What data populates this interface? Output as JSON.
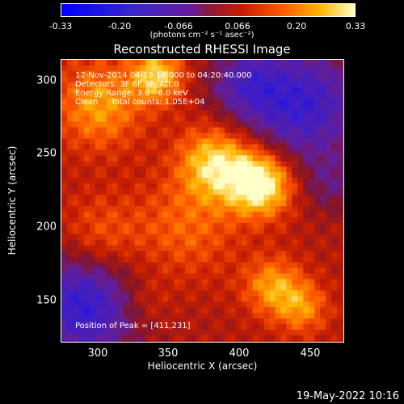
{
  "colorbar": {
    "ticks": [
      "-0.33",
      "-0.20",
      "-0.066",
      "0.066",
      "0.20",
      "0.33"
    ],
    "units": "(photons cm⁻² s⁻¹ asec⁻²)"
  },
  "chart_data": {
    "type": "heatmap",
    "title": "Reconstructed RHESSI Image",
    "xlabel": "Heliocentric X (arcsec)",
    "ylabel": "Heliocentric Y (arcsec)",
    "xlim": [
      276,
      470
    ],
    "ylim": [
      120,
      314
    ],
    "xticks": [
      "300",
      "350",
      "400",
      "450"
    ],
    "yticks": [
      "300",
      "250",
      "200",
      "150"
    ],
    "colorbar_range": [
      -0.33,
      0.33
    ],
    "peak": [
      411,
      231
    ],
    "annotations": [
      "12-Nov-2014 04:19:16.000 to 04:20:40.000",
      "Detectors: 3F 6F 9F, Att 0",
      "Energy Range: 3.0 - 6.0 keV",
      "Clean     Total counts: 1.05E+04",
      "Position of Peak = [411,231]"
    ]
  },
  "footer": "19-May-2022 10:16"
}
